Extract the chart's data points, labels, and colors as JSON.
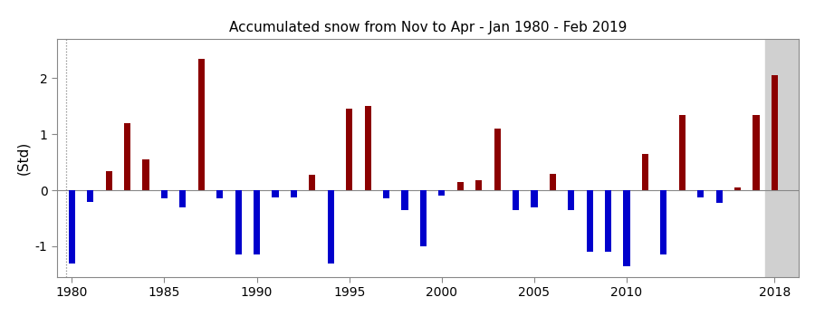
{
  "title": "Accumulated snow from Nov to Apr - Jan 1980 - Feb 2019",
  "ylabel": "(Std)",
  "xlim": [
    1979.2,
    2019.3
  ],
  "ylim": [
    -1.55,
    2.7
  ],
  "yticks": [
    -1,
    0,
    1,
    2
  ],
  "xticks": [
    1980,
    1985,
    1990,
    1995,
    2000,
    2005,
    2010,
    2018
  ],
  "background_color": "#ffffff",
  "bar_color_pos": "#8B0000",
  "bar_color_neg": "#0000CC",
  "bar_width": 0.35,
  "highlight_x_start": 2017.5,
  "highlight_x_end": 2019.3,
  "highlight_color": "#D0D0D0",
  "years": [
    1980,
    1981,
    1982,
    1983,
    1984,
    1985,
    1986,
    1987,
    1988,
    1989,
    1990,
    1991,
    1992,
    1993,
    1994,
    1995,
    1996,
    1997,
    1998,
    1999,
    2000,
    2001,
    2002,
    2003,
    2004,
    2005,
    2006,
    2007,
    2008,
    2009,
    2010,
    2011,
    2012,
    2013,
    2014,
    2015,
    2016,
    2017,
    2018
  ],
  "values": [
    -1.3,
    -0.2,
    0.35,
    1.2,
    0.55,
    -0.15,
    -0.3,
    2.35,
    -0.15,
    -1.15,
    -1.15,
    -0.12,
    -0.12,
    0.28,
    -1.3,
    1.45,
    1.5,
    -0.15,
    -0.35,
    -1.0,
    -0.1,
    0.15,
    0.18,
    1.1,
    -0.35,
    -0.3,
    0.3,
    -0.35,
    -1.1,
    -1.1,
    -1.35,
    0.65,
    -1.15,
    1.35,
    -0.12,
    -0.22,
    0.05,
    1.35,
    2.05
  ],
  "vline_x": 1979.7,
  "vline_style": "dotted",
  "vline_color": "#888888",
  "zero_line_color": "#888888",
  "spine_color": "#888888",
  "tick_fontsize": 10,
  "ylabel_fontsize": 11,
  "title_fontsize": 11
}
